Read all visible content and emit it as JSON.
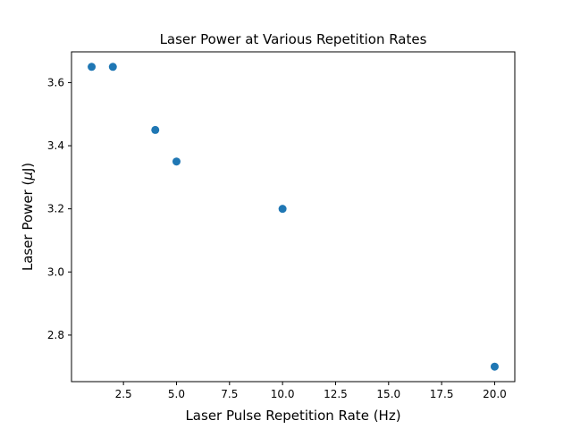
{
  "chart_data": {
    "type": "scatter",
    "title": "Laser Power at Various Repetition Rates",
    "xlabel": "Laser Pulse Repetition Rate (Hz)",
    "ylabel_main": "Laser Power (",
    "ylabel_unit_greek": "μ",
    "ylabel_unit_rest": "J)",
    "xlim": [
      0.05,
      20.95
    ],
    "ylim": [
      2.6525,
      3.6975
    ],
    "xticks": [
      2.5,
      5.0,
      7.5,
      10.0,
      12.5,
      15.0,
      17.5,
      20.0
    ],
    "xtick_labels": [
      "2.5",
      "5.0",
      "7.5",
      "10.0",
      "12.5",
      "15.0",
      "17.5",
      "20.0"
    ],
    "yticks": [
      2.8,
      3.0,
      3.2,
      3.4,
      3.6
    ],
    "ytick_labels": [
      "2.8",
      "3.0",
      "3.2",
      "3.4",
      "3.6"
    ],
    "grid": false,
    "marker_color": "#1f77b4",
    "points": [
      {
        "x": 1,
        "y": 3.65
      },
      {
        "x": 2,
        "y": 3.65
      },
      {
        "x": 4,
        "y": 3.45
      },
      {
        "x": 5,
        "y": 3.35
      },
      {
        "x": 10,
        "y": 3.2
      },
      {
        "x": 20,
        "y": 2.7
      }
    ]
  }
}
